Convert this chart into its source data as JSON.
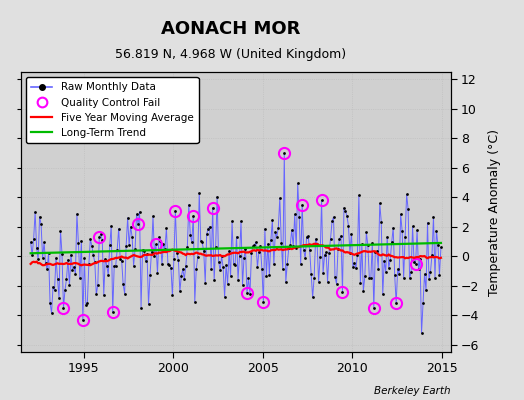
{
  "title": "AONACH MOR",
  "subtitle": "56.819 N, 4.968 W (United Kingdom)",
  "ylabel": "Temperature Anomaly (°C)",
  "watermark": "Berkeley Earth",
  "xlim": [
    1991.5,
    2015.5
  ],
  "ylim": [
    -6.5,
    12.5
  ],
  "yticks": [
    -6,
    -4,
    -2,
    0,
    2,
    4,
    6,
    8,
    10,
    12
  ],
  "xticks": [
    1995,
    2000,
    2005,
    2010,
    2015
  ],
  "bg_color": "#e0e0e0",
  "plot_bg_color": "#d0d0d0",
  "raw_line_color": "#6666ff",
  "raw_marker_color": "#000000",
  "qc_fail_color": "#ff00ff",
  "moving_avg_color": "#ff0000",
  "trend_color": "#00bb00",
  "title_fontsize": 13,
  "subtitle_fontsize": 9,
  "seed": 42,
  "start_year": 1992,
  "end_year": 2014,
  "n_months": 276,
  "qc_fail_indices": [
    22,
    35,
    46,
    55,
    72,
    84,
    97,
    109,
    122,
    145,
    156,
    170,
    182,
    195,
    209,
    230,
    245,
    258
  ],
  "qc_fail_values": [
    -3.5,
    -4.3,
    1.3,
    -3.8,
    2.2,
    0.8,
    3.1,
    2.7,
    3.3,
    -2.5,
    -3.1,
    7.0,
    3.5,
    3.8,
    -2.4,
    -3.5,
    -3.2,
    -0.5
  ]
}
